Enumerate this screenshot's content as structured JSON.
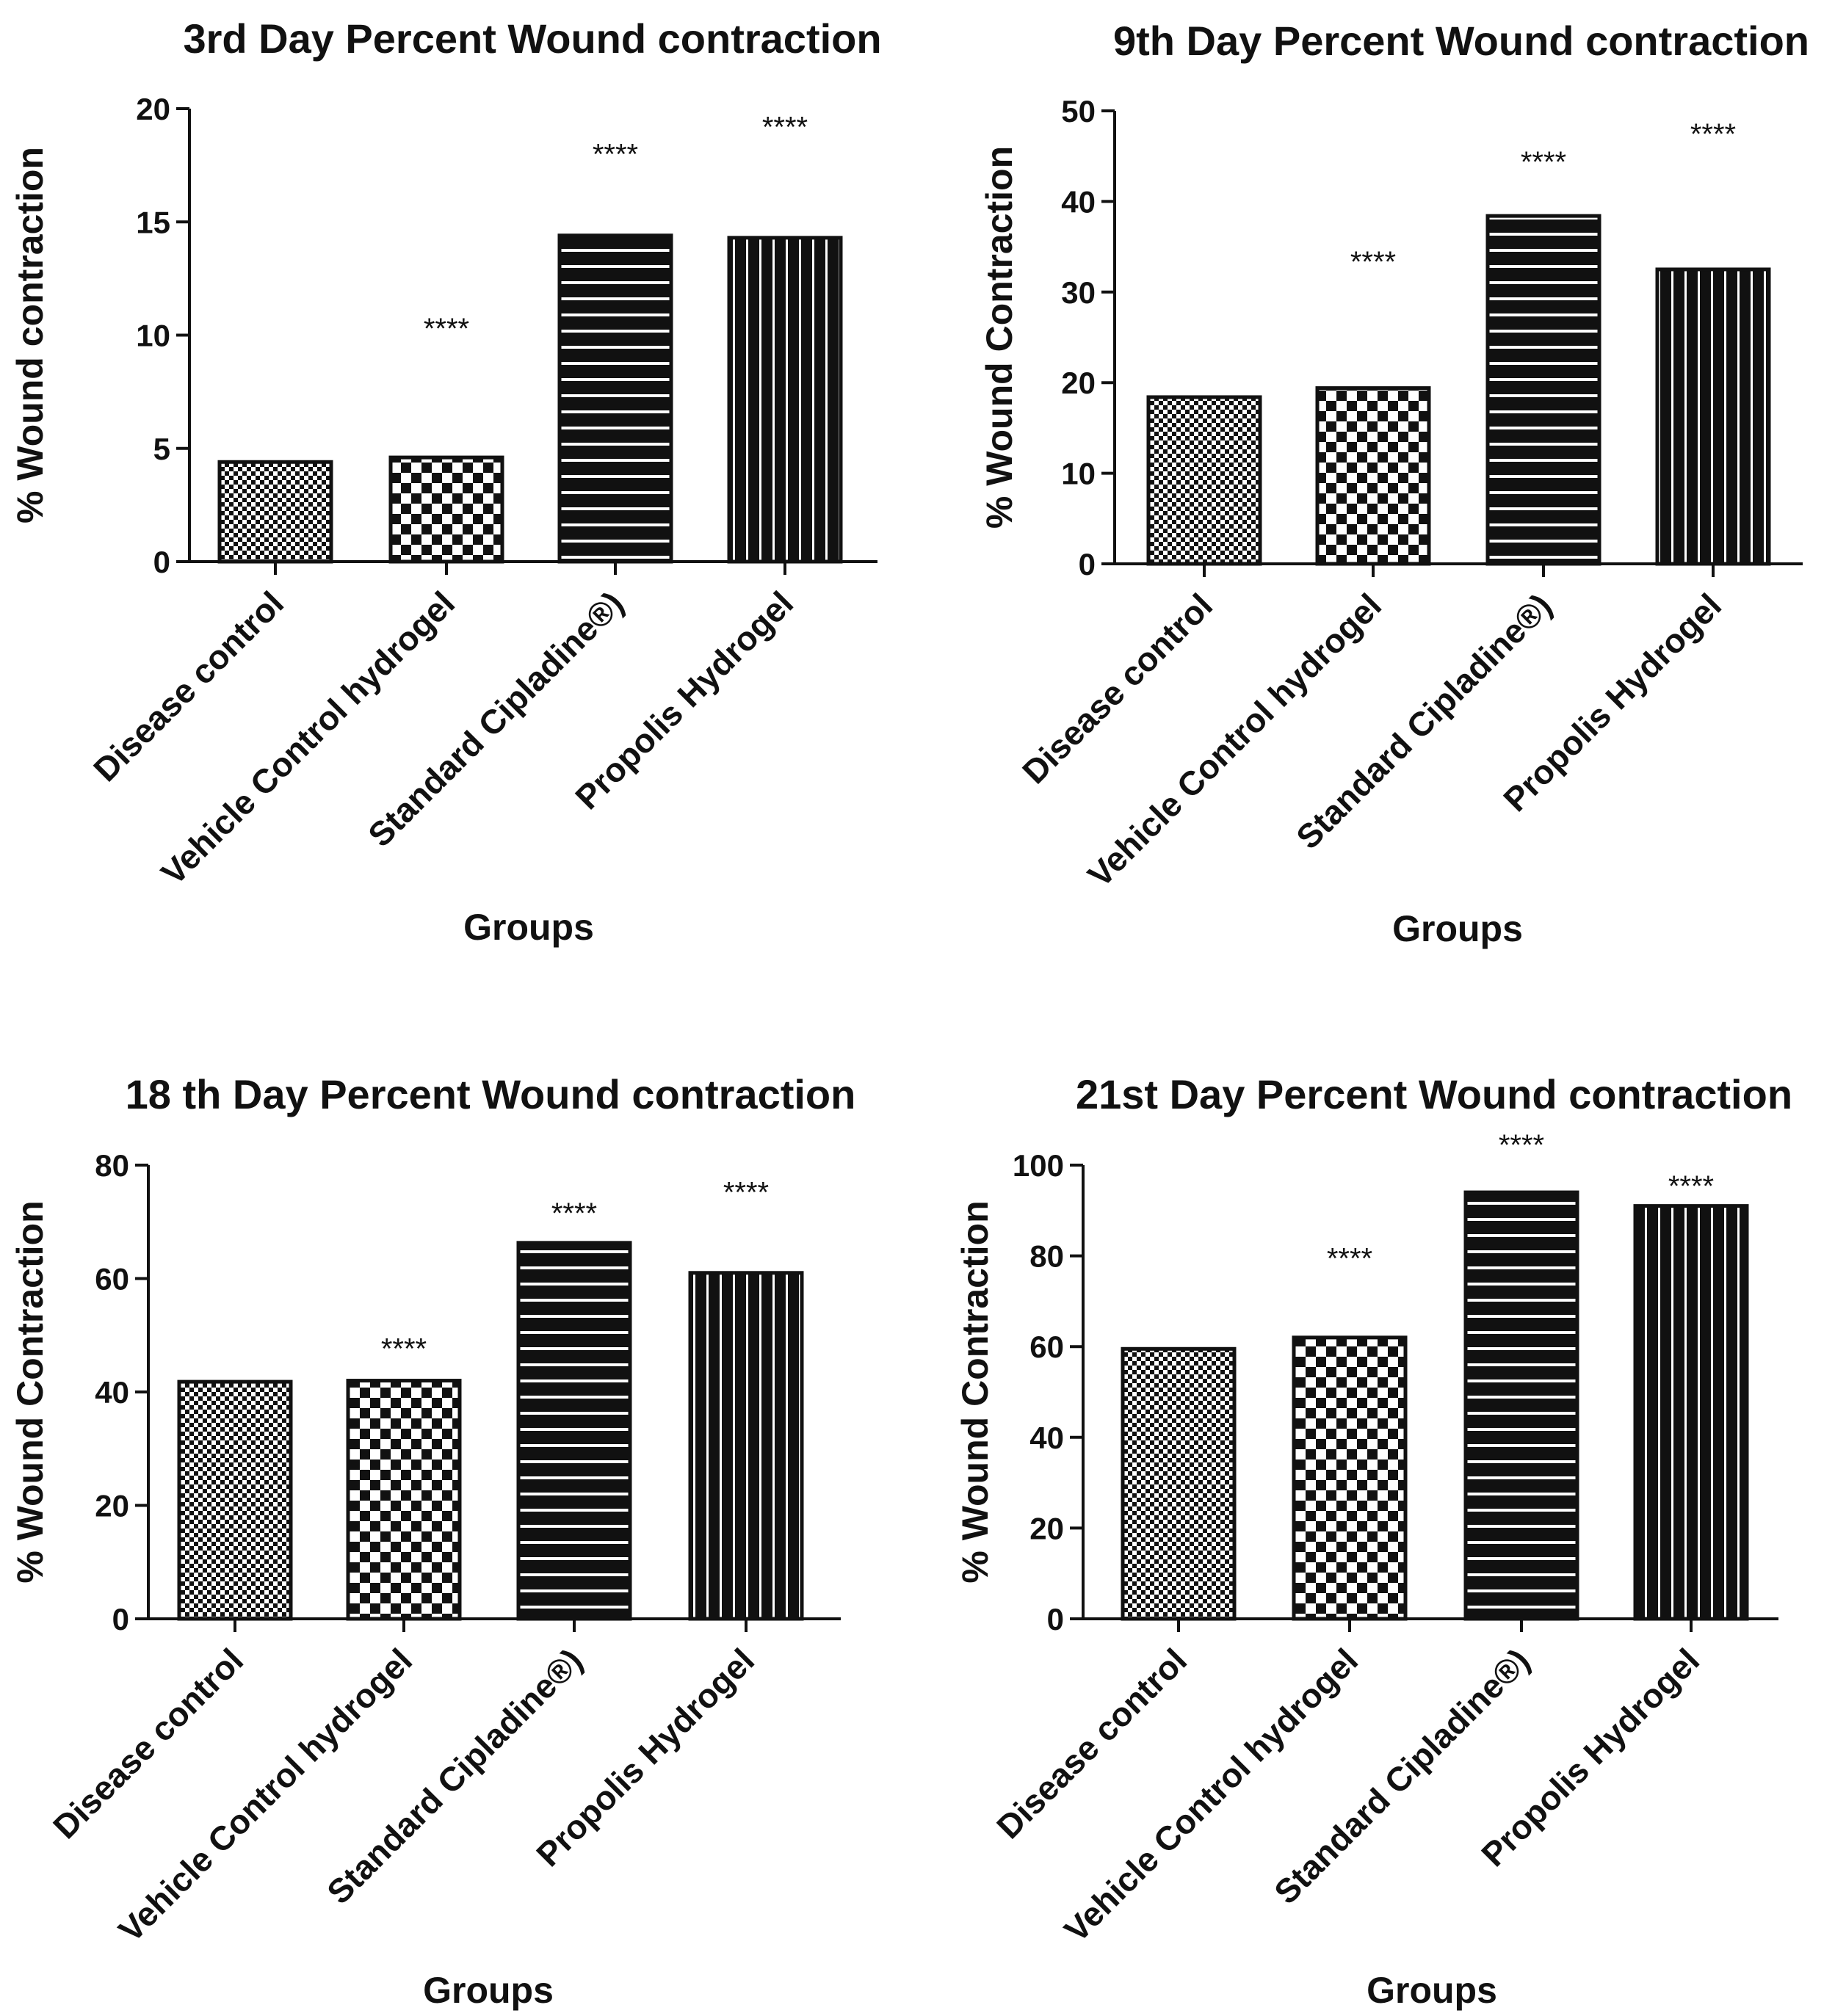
{
  "chart_data": [
    {
      "type": "bar",
      "title": "3rd Day Percent Wound contraction",
      "xlabel": "Groups",
      "ylabel": "% Wound contraction",
      "categories": [
        "Disease control",
        "Vehicle Control hydrogel",
        "Standard Cipladine®)",
        "Propolis Hydrogel"
      ],
      "values": [
        4.4,
        4.6,
        14.4,
        14.3
      ],
      "patterns": [
        "fine-check",
        "check",
        "hlines",
        "vlines"
      ],
      "significance": [
        "",
        "****",
        "****",
        "****"
      ],
      "significance_at": [
        null,
        10.3,
        18.0,
        19.2
      ],
      "ylim": [
        0,
        20
      ],
      "yticks": [
        0,
        5,
        10,
        15,
        20
      ]
    },
    {
      "type": "bar",
      "title": "9th Day Percent Wound contraction",
      "xlabel": "Groups",
      "ylabel": "% Wound Contraction",
      "categories": [
        "Disease control",
        "Vehicle Control hydrogel",
        "Standard Cipladine®)",
        "Propolis Hydrogel"
      ],
      "values": [
        18.4,
        19.4,
        38.4,
        32.5
      ],
      "patterns": [
        "fine-check",
        "check",
        "hlines",
        "vlines"
      ],
      "significance": [
        "",
        "****",
        "****",
        "****"
      ],
      "significance_at": [
        null,
        33.4,
        44.4,
        47.5
      ],
      "ylim": [
        0,
        50
      ],
      "yticks": [
        0,
        10,
        20,
        30,
        40,
        50
      ]
    },
    {
      "type": "bar",
      "title": "18 th Day Percent Wound contraction",
      "xlabel": "Groups",
      "ylabel": "% Wound Contraction",
      "categories": [
        "Disease control",
        "Vehicle Control hydrogel",
        "Standard Cipladine®)",
        "Propolis Hydrogel"
      ],
      "values": [
        41.8,
        42.0,
        66.3,
        61.0
      ],
      "patterns": [
        "fine-check",
        "check",
        "hlines",
        "vlines"
      ],
      "significance": [
        "",
        "****",
        "****",
        "****"
      ],
      "significance_at": [
        null,
        47.7,
        71.6,
        75.3
      ],
      "ylim": [
        0,
        80
      ],
      "yticks": [
        0,
        20,
        40,
        60,
        80
      ]
    },
    {
      "type": "bar",
      "title": "21st Day Percent Wound contraction",
      "xlabel": "Groups",
      "ylabel": "% Wound Contraction",
      "categories": [
        "Disease control",
        "Vehicle Control hydrogel",
        "Standard Cipladine®)",
        "Propolis Hydrogel"
      ],
      "values": [
        59.5,
        62.0,
        94.0,
        91.0
      ],
      "patterns": [
        "fine-check",
        "check",
        "hlines",
        "vlines"
      ],
      "significance": [
        "",
        "****",
        "****",
        "****"
      ],
      "significance_at": [
        null,
        79.5,
        104.5,
        95.5
      ],
      "ylim": [
        0,
        100
      ],
      "yticks": [
        0,
        20,
        40,
        60,
        80,
        100
      ]
    }
  ]
}
